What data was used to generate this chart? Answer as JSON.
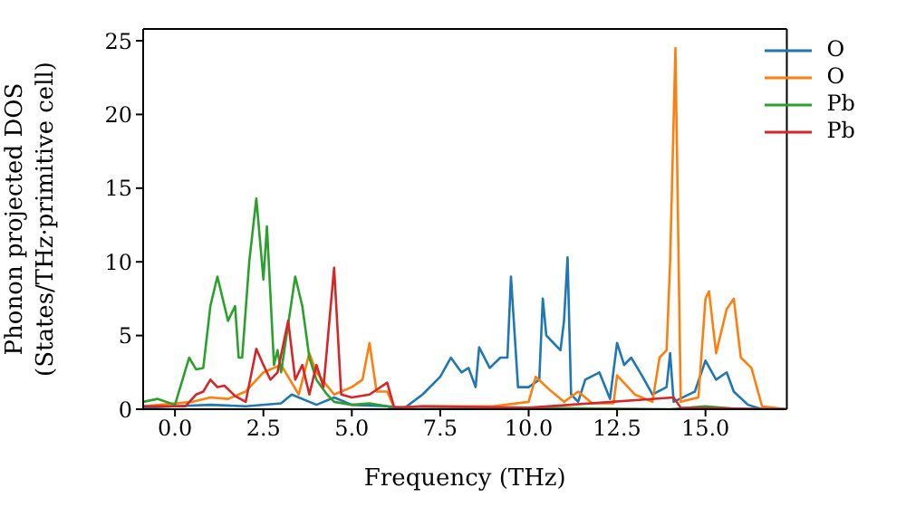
{
  "chart_data": {
    "type": "line",
    "xlabel": "Frequency (THz)",
    "ylabel": "Phonon projected DOS\n(States/THz·primitive cell)",
    "xlim": [
      -0.9,
      17.3
    ],
    "ylim": [
      0,
      25.8
    ],
    "xticks": [
      {
        "value": 0,
        "label": "0.0"
      },
      {
        "value": 2.5,
        "label": "2.5"
      },
      {
        "value": 5,
        "label": "5.0"
      },
      {
        "value": 7.5,
        "label": "7.5"
      },
      {
        "value": 10,
        "label": "10.0"
      },
      {
        "value": 12.5,
        "label": "12.5"
      },
      {
        "value": 15,
        "label": "15.0"
      }
    ],
    "yticks": [
      0,
      5,
      10,
      15,
      20,
      25
    ],
    "legend": "top right",
    "marker": "none",
    "line_style": "solid",
    "series": [
      {
        "name": "O",
        "color": "#1f77b4",
        "x": [
          -0.9,
          0,
          1,
          2,
          3,
          3.3,
          4,
          4.5,
          5,
          6,
          6.5,
          7,
          7.5,
          7.8,
          8.1,
          8.3,
          8.5,
          8.6,
          8.9,
          9.2,
          9.4,
          9.5,
          9.7,
          10,
          10.3,
          10.4,
          10.5,
          10.7,
          10.9,
          11,
          11.1,
          11.2,
          11.4,
          11.6,
          12,
          12.3,
          12.5,
          12.7,
          12.9,
          13.2,
          13.5,
          13.9,
          14,
          14.1,
          14.7,
          15,
          15.3,
          15.6,
          15.8,
          16.2,
          16.6,
          17.3
        ],
        "values": [
          0.1,
          0.2,
          0.3,
          0.2,
          0.4,
          1,
          0.3,
          0.8,
          0.3,
          0.2,
          0.1,
          1,
          2.2,
          3.5,
          2.5,
          2.8,
          1.5,
          4.2,
          2.8,
          3.5,
          3.5,
          9,
          1.5,
          1.5,
          2,
          7.5,
          5,
          4.5,
          4,
          6,
          10.3,
          1,
          0.5,
          2,
          2.5,
          0.7,
          4.5,
          3,
          3.5,
          2.3,
          1,
          1.5,
          3.8,
          0.5,
          1.2,
          3.3,
          2,
          2.5,
          1.2,
          0.3,
          0,
          0
        ]
      },
      {
        "name": "O",
        "color": "#ff7f0e",
        "x": [
          -0.9,
          0.5,
          1,
          1.5,
          2,
          2.5,
          3,
          3.5,
          3.8,
          4,
          4.5,
          5,
          5.3,
          5.5,
          5.7,
          6,
          6.2,
          7,
          9,
          10,
          10.2,
          10.6,
          11,
          11.4,
          11.8,
          12.4,
          12.5,
          13,
          13.5,
          13.7,
          13.9,
          14,
          14.15,
          14.3,
          14.8,
          15,
          15.1,
          15.3,
          15.6,
          15.8,
          16,
          16.3,
          16.6,
          17.3
        ],
        "values": [
          0.2,
          0.5,
          0.8,
          0.7,
          1.2,
          2.5,
          3,
          1,
          3.8,
          2.5,
          1,
          1.5,
          2,
          4.5,
          1.2,
          1.2,
          0.1,
          0.2,
          0.2,
          0.5,
          2.2,
          1.3,
          0.5,
          1.2,
          0.4,
          0.4,
          2.3,
          1,
          0.5,
          3.5,
          4,
          10,
          24.5,
          0.5,
          0.8,
          7.5,
          8,
          3.8,
          6.8,
          7.5,
          3.5,
          2.8,
          0.2,
          0
        ]
      },
      {
        "name": "Pb",
        "color": "#2ca02c",
        "x": [
          -0.9,
          -0.5,
          0,
          0.4,
          0.6,
          0.8,
          1,
          1.2,
          1.5,
          1.7,
          1.8,
          1.9,
          2.1,
          2.3,
          2.5,
          2.6,
          2.8,
          2.9,
          3,
          3.4,
          3.6,
          3.8,
          4,
          4.3,
          4.5,
          5,
          5.5,
          6,
          6.2,
          10,
          14,
          15,
          16,
          17.3
        ],
        "values": [
          0.5,
          0.7,
          0.3,
          3.5,
          2.7,
          2.8,
          7,
          9,
          6,
          7,
          3.5,
          3.5,
          10,
          14.3,
          8.8,
          12.4,
          3,
          4,
          2.5,
          9,
          7,
          3.5,
          2,
          1,
          0.5,
          0.3,
          0.4,
          0.2,
          0,
          0.1,
          0,
          0.2,
          0,
          0
        ]
      },
      {
        "name": "Pb",
        "color": "#d62728",
        "x": [
          -0.9,
          0.3,
          0.6,
          0.8,
          1,
          1.2,
          1.4,
          1.7,
          2,
          2.3,
          2.5,
          2.7,
          2.9,
          3.2,
          3.4,
          3.6,
          3.8,
          4,
          4.2,
          4.5,
          4.7,
          5,
          5.5,
          6,
          6.2,
          7,
          10,
          14.1,
          14.3,
          17.3
        ],
        "values": [
          0.2,
          0.2,
          1,
          1.2,
          2,
          1.5,
          1.6,
          0.9,
          0.5,
          4.1,
          3,
          2,
          2.5,
          6,
          2,
          3,
          1,
          3,
          1.5,
          9.6,
          1,
          0.8,
          1,
          1.8,
          0.1,
          0.2,
          0.1,
          0.8,
          0.1,
          0
        ]
      }
    ]
  }
}
